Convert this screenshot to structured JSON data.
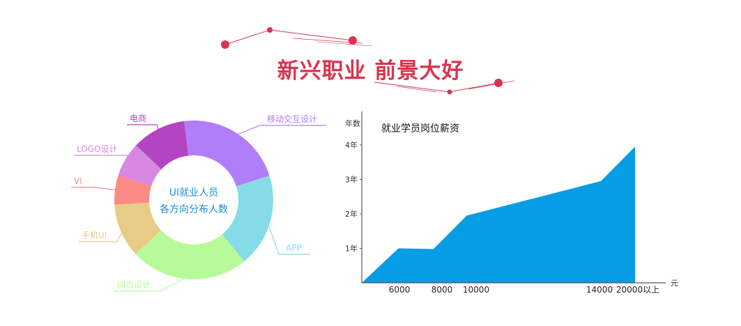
{
  "page": {
    "headline": "新兴职业 前景大好",
    "accent_color": "#d8344e"
  },
  "chart_data": [
    {
      "type": "pie",
      "variant": "donut",
      "center_label_line1": "UI就业人员",
      "center_label_line2": "各方向分布人数",
      "slices": [
        {
          "label": "移动交互设计",
          "value": 22,
          "color": "#b07ef8"
        },
        {
          "label": "APP",
          "value": 19,
          "color": "#85dbe8"
        },
        {
          "label": "网页设计",
          "value": 24,
          "color": "#b7fb98"
        },
        {
          "label": "手机UI",
          "value": 11,
          "color": "#e7cb86"
        },
        {
          "label": "VI",
          "value": 6,
          "color": "#fb8b84"
        },
        {
          "label": "LOGO设计",
          "value": 7,
          "color": "#d887e3"
        },
        {
          "label": "电商",
          "value": 11,
          "color": "#b345c1"
        }
      ]
    },
    {
      "type": "area",
      "title": "就业学员岗位薪资",
      "ylabel": "年数",
      "xlabel": "元",
      "color": "#069de4",
      "y_ticks": [
        {
          "value": 1,
          "label": "1年"
        },
        {
          "value": 2,
          "label": "2年"
        },
        {
          "value": 3,
          "label": "3年"
        },
        {
          "value": 4,
          "label": "4年"
        }
      ],
      "x_ticks": [
        {
          "value": 6000,
          "label": "6000"
        },
        {
          "value": 8000,
          "label": "8000"
        },
        {
          "value": 10000,
          "label": "10000"
        },
        {
          "value": 14000,
          "label": "14000"
        },
        {
          "value": 20000,
          "label": "20000以上"
        }
      ],
      "points": [
        {
          "x": 4000,
          "y": 0
        },
        {
          "x": 5950,
          "y": 1.0
        },
        {
          "x": 7600,
          "y": 0.98
        },
        {
          "x": 9450,
          "y": 1.95
        },
        {
          "x": 15900,
          "y": 2.95
        },
        {
          "x": 16750,
          "y": 3.95
        },
        {
          "x": 16750,
          "y": 0
        }
      ]
    }
  ]
}
